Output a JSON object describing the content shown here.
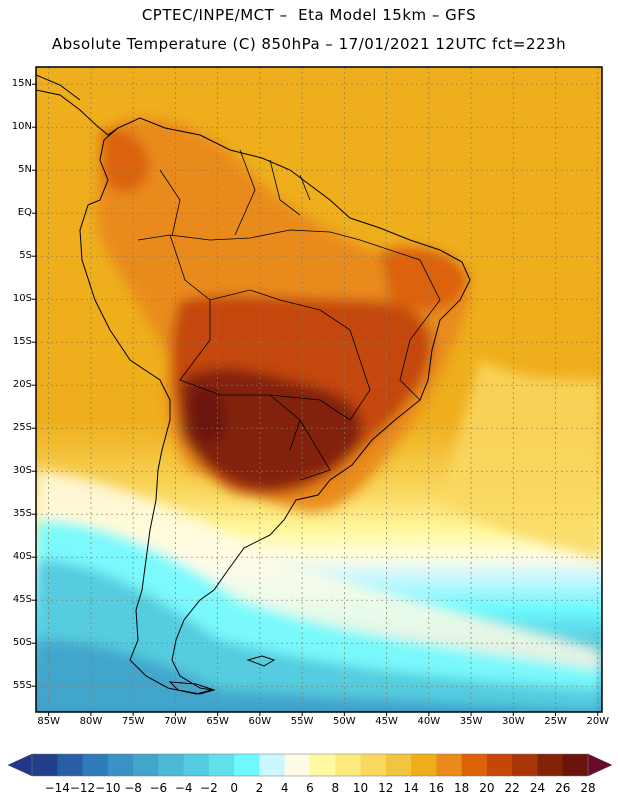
{
  "header": {
    "line1": "CPTEC/INPE/MCT –  Eta Model 15km – GFS",
    "line2": "Absolute Temperature (C) 850hPa – 17/01/2021 12UTC fct=223h"
  },
  "map": {
    "lon_min": -86.5,
    "lon_max": -19.5,
    "lat_min": -58,
    "lat_max": 17,
    "lat_ticks": [
      {
        "value": 15,
        "label": "15N"
      },
      {
        "value": 10,
        "label": "10N"
      },
      {
        "value": 5,
        "label": "5N"
      },
      {
        "value": 0,
        "label": "EQ"
      },
      {
        "value": -5,
        "label": "5S"
      },
      {
        "value": -10,
        "label": "10S"
      },
      {
        "value": -15,
        "label": "15S"
      },
      {
        "value": -20,
        "label": "20S"
      },
      {
        "value": -25,
        "label": "25S"
      },
      {
        "value": -30,
        "label": "30S"
      },
      {
        "value": -35,
        "label": "35S"
      },
      {
        "value": -40,
        "label": "40S"
      },
      {
        "value": -45,
        "label": "45S"
      },
      {
        "value": -50,
        "label": "50S"
      },
      {
        "value": -55,
        "label": "55S"
      }
    ],
    "lon_ticks": [
      {
        "value": -85,
        "label": "85W"
      },
      {
        "value": -80,
        "label": "80W"
      },
      {
        "value": -75,
        "label": "75W"
      },
      {
        "value": -70,
        "label": "70W"
      },
      {
        "value": -65,
        "label": "65W"
      },
      {
        "value": -60,
        "label": "60W"
      },
      {
        "value": -55,
        "label": "55W"
      },
      {
        "value": -50,
        "label": "50W"
      },
      {
        "value": -45,
        "label": "45W"
      },
      {
        "value": -40,
        "label": "40W"
      },
      {
        "value": -35,
        "label": "35W"
      },
      {
        "value": -30,
        "label": "30W"
      },
      {
        "value": -25,
        "label": "25W"
      },
      {
        "value": -20,
        "label": "20W"
      }
    ],
    "grid": true
  },
  "colorbar": {
    "labels": [
      "-14",
      "-12",
      "-10",
      "-8",
      "-6",
      "-4",
      "-2",
      "0",
      "2",
      "4",
      "6",
      "8",
      "10",
      "12",
      "14",
      "16",
      "18",
      "20",
      "22",
      "24",
      "26",
      "28"
    ],
    "colors": [
      "#223f8c",
      "#285ea4",
      "#2f7ab8",
      "#3892c4",
      "#42a6cc",
      "#4cbad7",
      "#55ccdf",
      "#62dfe9",
      "#6df9ff",
      "#ccf7ff",
      "#fffce6",
      "#fff9a0",
      "#fdea7c",
      "#f9d860",
      "#f2c440",
      "#efaf1c",
      "#e98b1a",
      "#dc6208",
      "#c44707",
      "#a83607",
      "#822207",
      "#6a140c"
    ]
  }
}
